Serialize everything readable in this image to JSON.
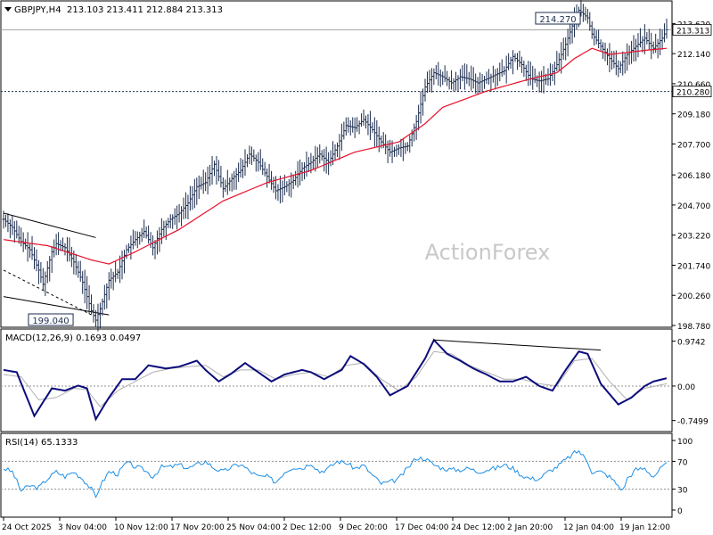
{
  "chart_data": {
    "type": "line",
    "title": "GBPJPY,H4",
    "ohlc": {
      "open": "213.103",
      "high": "213.411",
      "low": "212.884",
      "close": "213.313"
    },
    "watermark": "ActionForex",
    "price_axis": {
      "min": 198.78,
      "max": 214.6,
      "ticks": [
        "213.620",
        "212.140",
        "210.660",
        "209.180",
        "207.700",
        "206.180",
        "204.700",
        "203.220",
        "201.740",
        "200.260",
        "198.780"
      ],
      "current_price": "213.313",
      "support_price": "210.280"
    },
    "annotations": {
      "high": "214.270",
      "low": "199.040"
    },
    "x_labels": [
      "24 Oct 2025",
      "3 Nov 04:00",
      "10 Nov 12:00",
      "17 Nov 20:00",
      "25 Nov 04:00",
      "2 Dec 12:00",
      "9 Dec 20:00",
      "17 Dec 04:00",
      "24 Dec 12:00",
      "2 Jan 20:00",
      "12 Jan 04:00",
      "19 Jan 12:00"
    ],
    "price_path": [
      [
        0,
        204.0
      ],
      [
        2,
        203.6
      ],
      [
        4,
        202.9
      ],
      [
        6,
        202.5
      ],
      [
        8,
        201.5
      ],
      [
        9,
        200.8
      ],
      [
        10,
        201.6
      ],
      [
        11,
        202.4
      ],
      [
        12,
        202.8
      ],
      [
        14,
        202.6
      ],
      [
        16,
        201.9
      ],
      [
        18,
        200.9
      ],
      [
        20,
        199.5
      ],
      [
        21,
        199.04
      ],
      [
        22,
        199.6
      ],
      [
        24,
        201.0
      ],
      [
        26,
        201.4
      ],
      [
        28,
        202.5
      ],
      [
        30,
        203.0
      ],
      [
        32,
        203.4
      ],
      [
        34,
        202.6
      ],
      [
        36,
        203.5
      ],
      [
        38,
        204.0
      ],
      [
        40,
        204.3
      ],
      [
        42,
        204.8
      ],
      [
        44,
        205.6
      ],
      [
        46,
        205.8
      ],
      [
        48,
        206.7
      ],
      [
        50,
        205.5
      ],
      [
        52,
        206.0
      ],
      [
        54,
        206.4
      ],
      [
        56,
        207.2
      ],
      [
        58,
        206.8
      ],
      [
        60,
        206.1
      ],
      [
        62,
        205.4
      ],
      [
        64,
        205.6
      ],
      [
        66,
        205.9
      ],
      [
        68,
        206.5
      ],
      [
        70,
        206.8
      ],
      [
        72,
        207.2
      ],
      [
        74,
        206.8
      ],
      [
        76,
        207.6
      ],
      [
        78,
        208.6
      ],
      [
        80,
        208.5
      ],
      [
        82,
        208.9
      ],
      [
        84,
        208.4
      ],
      [
        86,
        207.8
      ],
      [
        88,
        207.3
      ],
      [
        90,
        207.5
      ],
      [
        92,
        207.6
      ],
      [
        94,
        208.8
      ],
      [
        96,
        210.5
      ],
      [
        98,
        211.2
      ],
      [
        100,
        211.0
      ],
      [
        102,
        210.7
      ],
      [
        104,
        211.0
      ],
      [
        106,
        210.9
      ],
      [
        108,
        210.7
      ],
      [
        110,
        210.9
      ],
      [
        112,
        211.1
      ],
      [
        114,
        211.3
      ],
      [
        116,
        212.0
      ],
      [
        118,
        211.6
      ],
      [
        120,
        210.9
      ],
      [
        122,
        210.8
      ],
      [
        124,
        210.9
      ],
      [
        126,
        211.6
      ],
      [
        128,
        212.6
      ],
      [
        130,
        213.8
      ],
      [
        131,
        214.27
      ],
      [
        133,
        213.9
      ],
      [
        134,
        213.1
      ],
      [
        136,
        212.5
      ],
      [
        138,
        211.9
      ],
      [
        140,
        211.4
      ],
      [
        142,
        212.1
      ],
      [
        144,
        212.5
      ],
      [
        146,
        212.9
      ],
      [
        148,
        212.4
      ],
      [
        150,
        212.9
      ],
      [
        151,
        213.31
      ]
    ],
    "ma_path": [
      [
        0,
        203.0
      ],
      [
        10,
        202.7
      ],
      [
        20,
        202.0
      ],
      [
        24,
        201.8
      ],
      [
        30,
        202.4
      ],
      [
        40,
        203.5
      ],
      [
        50,
        204.9
      ],
      [
        60,
        205.8
      ],
      [
        70,
        206.4
      ],
      [
        80,
        207.3
      ],
      [
        90,
        207.8
      ],
      [
        96,
        208.7
      ],
      [
        100,
        209.5
      ],
      [
        110,
        210.3
      ],
      [
        120,
        210.9
      ],
      [
        126,
        211.2
      ],
      [
        130,
        211.9
      ],
      [
        134,
        212.4
      ],
      [
        138,
        212.1
      ],
      [
        142,
        212.2
      ],
      [
        146,
        212.3
      ],
      [
        151,
        212.4
      ]
    ],
    "channel_lines": [
      {
        "from": [
          0,
          204.3
        ],
        "to": [
          21,
          203.1
        ]
      },
      {
        "from": [
          0,
          200.2
        ],
        "to": [
          24,
          199.3
        ]
      }
    ],
    "channel_dashed": {
      "from": [
        0,
        201.5
      ],
      "to": [
        20,
        199.3
      ]
    },
    "macd": {
      "label": "MACD(12,26,9) 0.1693 0.0497",
      "min": -0.95,
      "max": 1.18,
      "ticks": [
        "0.9742",
        "0.00",
        "-0.7499"
      ],
      "main": [
        [
          0,
          0.35
        ],
        [
          3,
          0.3
        ],
        [
          7,
          -0.65
        ],
        [
          11,
          -0.05
        ],
        [
          14,
          -0.1
        ],
        [
          17,
          0.01
        ],
        [
          19,
          -0.05
        ],
        [
          21,
          -0.72
        ],
        [
          24,
          -0.25
        ],
        [
          27,
          0.15
        ],
        [
          30,
          0.15
        ],
        [
          33,
          0.45
        ],
        [
          37,
          0.38
        ],
        [
          40,
          0.42
        ],
        [
          44,
          0.55
        ],
        [
          46,
          0.35
        ],
        [
          49,
          0.1
        ],
        [
          52,
          0.28
        ],
        [
          55,
          0.5
        ],
        [
          58,
          0.3
        ],
        [
          61,
          0.1
        ],
        [
          64,
          0.25
        ],
        [
          68,
          0.35
        ],
        [
          70,
          0.3
        ],
        [
          73,
          0.15
        ],
        [
          77,
          0.35
        ],
        [
          79,
          0.65
        ],
        [
          82,
          0.48
        ],
        [
          85,
          0.2
        ],
        [
          88,
          -0.2
        ],
        [
          92,
          0.0
        ],
        [
          96,
          0.6
        ],
        [
          98,
          1.0
        ],
        [
          101,
          0.7
        ],
        [
          104,
          0.55
        ],
        [
          107,
          0.38
        ],
        [
          110,
          0.25
        ],
        [
          113,
          0.1
        ],
        [
          116,
          0.1
        ],
        [
          119,
          0.2
        ],
        [
          122,
          0.0
        ],
        [
          125,
          -0.1
        ],
        [
          128,
          0.35
        ],
        [
          131,
          0.75
        ],
        [
          133,
          0.7
        ],
        [
          136,
          0.05
        ],
        [
          140,
          -0.4
        ],
        [
          143,
          -0.25
        ],
        [
          146,
          0.0
        ],
        [
          148,
          0.1
        ],
        [
          151,
          0.17
        ]
      ],
      "signal": [
        [
          0,
          0.25
        ],
        [
          4,
          0.2
        ],
        [
          8,
          -0.3
        ],
        [
          12,
          -0.25
        ],
        [
          16,
          -0.05
        ],
        [
          19,
          -0.08
        ],
        [
          22,
          -0.45
        ],
        [
          26,
          -0.1
        ],
        [
          30,
          0.1
        ],
        [
          34,
          0.3
        ],
        [
          38,
          0.38
        ],
        [
          42,
          0.42
        ],
        [
          46,
          0.45
        ],
        [
          50,
          0.2
        ],
        [
          54,
          0.35
        ],
        [
          58,
          0.35
        ],
        [
          62,
          0.15
        ],
        [
          66,
          0.25
        ],
        [
          70,
          0.3
        ],
        [
          74,
          0.2
        ],
        [
          78,
          0.45
        ],
        [
          82,
          0.5
        ],
        [
          86,
          0.15
        ],
        [
          90,
          -0.1
        ],
        [
          94,
          0.2
        ],
        [
          98,
          0.75
        ],
        [
          102,
          0.7
        ],
        [
          106,
          0.45
        ],
        [
          110,
          0.3
        ],
        [
          114,
          0.15
        ],
        [
          118,
          0.15
        ],
        [
          122,
          0.05
        ],
        [
          126,
          0.0
        ],
        [
          130,
          0.55
        ],
        [
          134,
          0.6
        ],
        [
          138,
          0.1
        ],
        [
          142,
          -0.3
        ],
        [
          146,
          -0.05
        ],
        [
          151,
          0.05
        ]
      ],
      "divergence_line": {
        "from": [
          98,
          1.0
        ],
        "to": [
          136,
          0.78
        ]
      }
    },
    "rsi": {
      "label": "RSI(14) 65.1333",
      "min": 0,
      "max": 100,
      "ticks": [
        "100",
        "70",
        "30",
        "0"
      ],
      "levels": [
        70,
        30
      ],
      "values": [
        [
          0,
          60
        ],
        [
          2,
          55
        ],
        [
          4,
          28
        ],
        [
          6,
          35
        ],
        [
          8,
          32
        ],
        [
          10,
          45
        ],
        [
          12,
          55
        ],
        [
          14,
          48
        ],
        [
          16,
          55
        ],
        [
          18,
          45
        ],
        [
          20,
          30
        ],
        [
          21,
          18
        ],
        [
          22,
          35
        ],
        [
          24,
          55
        ],
        [
          26,
          52
        ],
        [
          28,
          68
        ],
        [
          30,
          62
        ],
        [
          32,
          58
        ],
        [
          34,
          48
        ],
        [
          36,
          62
        ],
        [
          38,
          62
        ],
        [
          40,
          65
        ],
        [
          42,
          60
        ],
        [
          44,
          65
        ],
        [
          46,
          70
        ],
        [
          48,
          60
        ],
        [
          50,
          55
        ],
        [
          52,
          62
        ],
        [
          54,
          66
        ],
        [
          56,
          56
        ],
        [
          58,
          48
        ],
        [
          60,
          48
        ],
        [
          62,
          40
        ],
        [
          64,
          55
        ],
        [
          66,
          62
        ],
        [
          68,
          60
        ],
        [
          70,
          68
        ],
        [
          72,
          55
        ],
        [
          74,
          60
        ],
        [
          76,
          70
        ],
        [
          78,
          68
        ],
        [
          80,
          60
        ],
        [
          82,
          64
        ],
        [
          84,
          50
        ],
        [
          86,
          38
        ],
        [
          88,
          40
        ],
        [
          90,
          45
        ],
        [
          92,
          60
        ],
        [
          94,
          75
        ],
        [
          96,
          74
        ],
        [
          98,
          65
        ],
        [
          100,
          60
        ],
        [
          102,
          58
        ],
        [
          104,
          58
        ],
        [
          106,
          60
        ],
        [
          108,
          55
        ],
        [
          110,
          58
        ],
        [
          112,
          60
        ],
        [
          114,
          65
        ],
        [
          116,
          60
        ],
        [
          118,
          50
        ],
        [
          120,
          45
        ],
        [
          122,
          45
        ],
        [
          124,
          55
        ],
        [
          126,
          62
        ],
        [
          128,
          72
        ],
        [
          130,
          82
        ],
        [
          131,
          85
        ],
        [
          133,
          70
        ],
        [
          134,
          55
        ],
        [
          136,
          55
        ],
        [
          138,
          48
        ],
        [
          140,
          35
        ],
        [
          141,
          28
        ],
        [
          142,
          45
        ],
        [
          144,
          58
        ],
        [
          146,
          60
        ],
        [
          148,
          48
        ],
        [
          150,
          62
        ],
        [
          151,
          65
        ]
      ]
    },
    "colors": {
      "price": "#1c2d4e",
      "ma": "#e8102a",
      "macd_main": "#0c0c7c",
      "macd_signal": "#b0b0b0",
      "rsi": "#1e8fe6",
      "grid_level": "#909090",
      "watermark": "#c8c8c8"
    }
  }
}
